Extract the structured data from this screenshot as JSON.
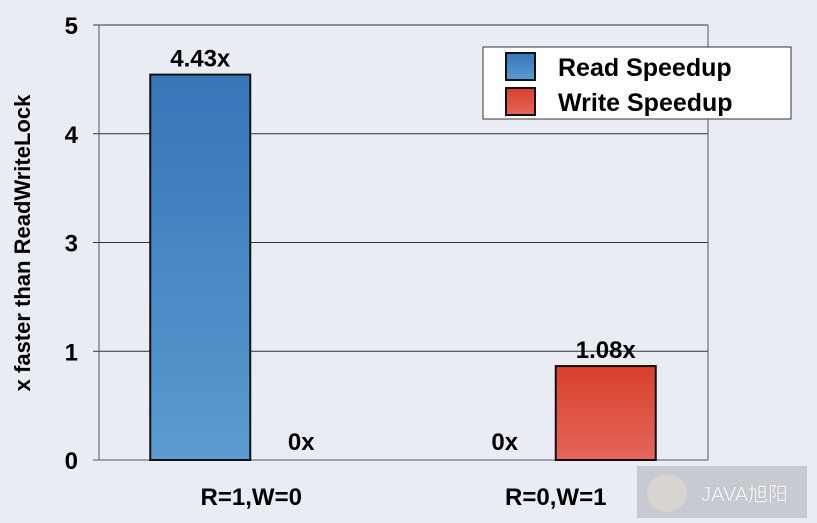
{
  "chart_data": {
    "type": "bar",
    "title": "",
    "xlabel": "",
    "ylabel": "x faster than ReadWriteLock",
    "ylim": [
      0,
      5
    ],
    "ytick_labels": [
      "5",
      "4",
      "3",
      "1",
      "0"
    ],
    "categories": [
      "R=1,W=0",
      "R=0,W=1"
    ],
    "series": [
      {
        "name": "Read Speedup",
        "values": [
          4.43,
          0
        ],
        "labels": [
          "4.43x",
          "0x"
        ],
        "color": "#3f7fbf"
      },
      {
        "name": "Write Speedup",
        "values": [
          0,
          1.08
        ],
        "labels": [
          "0x",
          "1.08x"
        ],
        "color": "#dc4a38"
      }
    ],
    "grid": true,
    "legend": "top-right"
  },
  "watermark": "JAVA旭阳"
}
